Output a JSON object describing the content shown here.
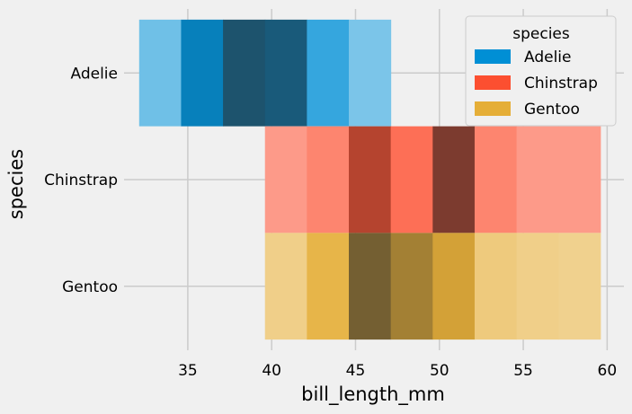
{
  "chart_data": {
    "type": "heatmap",
    "xlabel": "bill_length_mm",
    "ylabel": "species",
    "xlim": [
      31.2,
      61.0
    ],
    "x_ticks": [
      35,
      40,
      45,
      50,
      55,
      60
    ],
    "categories": [
      "Adelie",
      "Chinstrap",
      "Gentoo"
    ],
    "legend": {
      "title": "species",
      "position": "top-right",
      "entries": [
        "Adelie",
        "Chinstrap",
        "Gentoo"
      ]
    },
    "grid": true,
    "bin_edges": [
      32.1,
      34.6,
      37.1,
      39.6,
      42.1,
      44.6,
      47.1,
      49.6,
      52.1,
      54.6,
      57.1,
      59.6
    ],
    "series": [
      {
        "name": "Adelie",
        "color": "#008fd5",
        "bins": [
          {
            "x0": 32.1,
            "x1": 34.6,
            "count": 5
          },
          {
            "x0": 34.6,
            "x1": 37.1,
            "count": 30
          },
          {
            "x0": 37.1,
            "x1": 39.6,
            "count": 48
          },
          {
            "x0": 39.6,
            "x1": 42.1,
            "count": 45
          },
          {
            "x0": 42.1,
            "x1": 44.6,
            "count": 15
          },
          {
            "x0": 44.6,
            "x1": 47.1,
            "count": 3
          }
        ]
      },
      {
        "name": "Chinstrap",
        "color": "#fc4f30",
        "bins": [
          {
            "x0": 39.6,
            "x1": 42.1,
            "count": 2
          },
          {
            "x0": 42.1,
            "x1": 44.6,
            "count": 4
          },
          {
            "x0": 44.6,
            "x1": 47.1,
            "count": 14
          },
          {
            "x0": 47.1,
            "x1": 49.6,
            "count": 6
          },
          {
            "x0": 49.6,
            "x1": 52.1,
            "count": 18
          },
          {
            "x0": 52.1,
            "x1": 54.6,
            "count": 4
          },
          {
            "x0": 54.6,
            "x1": 57.1,
            "count": 2
          },
          {
            "x0": 57.1,
            "x1": 59.6,
            "count": 2
          }
        ]
      },
      {
        "name": "Gentoo",
        "color": "#e5ae38",
        "bins": [
          {
            "x0": 39.6,
            "x1": 42.1,
            "count": 5
          },
          {
            "x0": 42.1,
            "x1": 44.6,
            "count": 16
          },
          {
            "x0": 44.6,
            "x1": 47.1,
            "count": 38
          },
          {
            "x0": 47.1,
            "x1": 49.6,
            "count": 30
          },
          {
            "x0": 49.6,
            "x1": 52.1,
            "count": 22
          },
          {
            "x0": 52.1,
            "x1": 54.6,
            "count": 7
          },
          {
            "x0": 54.6,
            "x1": 57.1,
            "count": 5
          },
          {
            "x0": 57.1,
            "x1": 59.6,
            "count": 4
          }
        ]
      }
    ]
  }
}
